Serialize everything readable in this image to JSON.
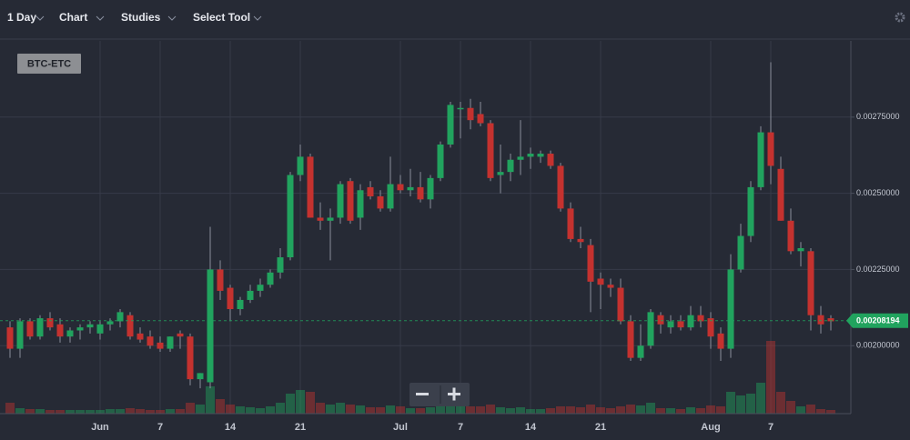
{
  "toolbar": {
    "items": [
      "1 Day",
      "Chart",
      "Studies",
      "Select Tool"
    ]
  },
  "chart_data": {
    "type": "candlestick",
    "symbol": "BTC-ETC",
    "categories": [
      null,
      null,
      null,
      null,
      null,
      null,
      null,
      null,
      null,
      "Jun",
      null,
      null,
      null,
      null,
      null,
      "7",
      null,
      null,
      null,
      null,
      null,
      null,
      "14",
      null,
      null,
      null,
      null,
      null,
      null,
      "21",
      null,
      null,
      null,
      null,
      null,
      null,
      null,
      null,
      null,
      "Jul",
      null,
      null,
      null,
      null,
      null,
      "7",
      null,
      null,
      null,
      null,
      null,
      null,
      "14",
      null,
      null,
      null,
      null,
      null,
      null,
      "21",
      null,
      null,
      null,
      null,
      null,
      null,
      null,
      null,
      null,
      null,
      "Aug",
      null,
      null,
      null,
      null,
      null,
      "7",
      null,
      null,
      null,
      null,
      null,
      null
    ],
    "open": [
      0.00206,
      0.00199,
      0.00208,
      0.00203,
      0.00209,
      0.00207,
      0.00203,
      0.00205,
      0.00206,
      0.00204,
      0.00207,
      0.00208,
      0.0021,
      0.00204,
      0.00203,
      0.00201,
      0.00199,
      0.00204,
      0.00203,
      0.00189,
      0.00188,
      0.00225,
      0.00219,
      0.00212,
      0.00215,
      0.00218,
      0.0022,
      0.00224,
      0.00229,
      0.00256,
      0.00262,
      0.00242,
      0.00241,
      0.00242,
      0.00254,
      0.00242,
      0.00252,
      0.00249,
      0.00245,
      0.00253,
      0.00251,
      0.00252,
      0.00248,
      0.00255,
      0.00266,
      0.00278,
      0.00278,
      0.00276,
      0.00273,
      0.00256,
      0.00257,
      0.00261,
      0.00262,
      0.00262,
      0.00263,
      0.00259,
      0.00245,
      0.00235,
      0.00233,
      0.00222,
      0.0022,
      0.00219,
      0.00208,
      0.00196,
      0.002,
      0.0021,
      0.00206,
      0.00208,
      0.00206,
      0.0021,
      0.00209,
      0.00204,
      0.00199,
      0.00225,
      0.00236,
      0.00252,
      0.0027,
      0.00258,
      0.00241,
      0.00231,
      0.00231,
      0.0021,
      0.00209
    ],
    "high": [
      0.00208,
      0.00209,
      0.00209,
      0.0021,
      0.00211,
      0.00209,
      0.00206,
      0.00207,
      0.00208,
      0.00208,
      0.00209,
      0.00212,
      0.00211,
      0.00206,
      0.00205,
      0.00203,
      0.00203,
      0.00205,
      0.00204,
      0.00191,
      0.00239,
      0.00228,
      0.0022,
      0.00216,
      0.0022,
      0.00222,
      0.00225,
      0.00232,
      0.00257,
      0.00266,
      0.00263,
      0.00247,
      0.00245,
      0.00254,
      0.00255,
      0.00253,
      0.00254,
      0.00251,
      0.00262,
      0.00256,
      0.00258,
      0.00257,
      0.00256,
      0.00267,
      0.0028,
      0.0028,
      0.00281,
      0.0028,
      0.00274,
      0.00266,
      0.00263,
      0.00274,
      0.00265,
      0.00264,
      0.00264,
      0.0026,
      0.00247,
      0.00239,
      0.00235,
      0.00224,
      0.00222,
      0.00222,
      0.0021,
      0.00207,
      0.00212,
      0.00211,
      0.0021,
      0.0021,
      0.00213,
      0.00213,
      0.00211,
      0.00206,
      0.0023,
      0.0024,
      0.00254,
      0.00272,
      0.00293,
      0.00262,
      0.00245,
      0.00234,
      0.00232,
      0.00213,
      0.0021
    ],
    "low": [
      0.00196,
      0.00196,
      0.00202,
      0.00202,
      0.00205,
      0.00201,
      0.00201,
      0.00202,
      0.00204,
      0.00202,
      0.00205,
      0.00206,
      0.00202,
      0.00201,
      0.00199,
      0.00198,
      0.00198,
      0.00199,
      0.00187,
      0.00186,
      0.00186,
      0.00215,
      0.00208,
      0.0021,
      0.00214,
      0.00216,
      0.00219,
      0.00222,
      0.00228,
      0.00254,
      0.00242,
      0.00238,
      0.00228,
      0.0024,
      0.0024,
      0.00238,
      0.00248,
      0.00244,
      0.00244,
      0.0025,
      0.00249,
      0.00247,
      0.00245,
      0.00254,
      0.00265,
      0.00268,
      0.00271,
      0.00272,
      0.00254,
      0.0025,
      0.00254,
      0.00256,
      0.00258,
      0.0026,
      0.00258,
      0.00244,
      0.00234,
      0.00232,
      0.00211,
      0.00212,
      0.00216,
      0.00207,
      0.00195,
      0.00195,
      0.00199,
      0.00204,
      0.00204,
      0.00205,
      0.00205,
      0.00206,
      0.00199,
      0.00195,
      0.00196,
      0.00224,
      0.00234,
      0.00251,
      0.00253,
      0.00241,
      0.0023,
      0.00226,
      0.00205,
      0.00204,
      0.00205
    ],
    "close": [
      0.00199,
      0.00208,
      0.00203,
      0.00209,
      0.00206,
      0.00203,
      0.00205,
      0.00206,
      0.00207,
      0.00207,
      0.00208,
      0.00211,
      0.00203,
      0.00202,
      0.002,
      0.00199,
      0.00203,
      0.00203,
      0.00189,
      0.00191,
      0.00225,
      0.00218,
      0.00212,
      0.00215,
      0.00218,
      0.0022,
      0.00224,
      0.00229,
      0.00256,
      0.00262,
      0.00242,
      0.00241,
      0.00242,
      0.00253,
      0.00241,
      0.00251,
      0.00249,
      0.00245,
      0.00253,
      0.00251,
      0.00252,
      0.00248,
      0.00255,
      0.00266,
      0.00279,
      0.00278,
      0.00274,
      0.00273,
      0.00255,
      0.00257,
      0.00261,
      0.00262,
      0.00263,
      0.00263,
      0.00259,
      0.00245,
      0.00235,
      0.00234,
      0.00221,
      0.0022,
      0.00219,
      0.00208,
      0.00196,
      0.002,
      0.00211,
      0.00207,
      0.00208,
      0.00206,
      0.0021,
      0.00208,
      0.00203,
      0.00199,
      0.00225,
      0.00236,
      0.00252,
      0.0027,
      0.00259,
      0.00241,
      0.00231,
      0.00232,
      0.0021,
      0.00207,
      0.00208
    ],
    "volume": [
      12,
      6,
      5,
      5,
      4,
      4,
      4,
      4,
      4,
      4,
      5,
      5,
      6,
      5,
      4,
      4,
      5,
      5,
      12,
      10,
      30,
      16,
      10,
      8,
      7,
      6,
      8,
      12,
      22,
      26,
      24,
      12,
      10,
      12,
      10,
      9,
      7,
      7,
      9,
      8,
      6,
      6,
      7,
      10,
      12,
      9,
      8,
      8,
      10,
      7,
      6,
      7,
      5,
      5,
      6,
      8,
      8,
      7,
      10,
      7,
      6,
      8,
      10,
      9,
      12,
      6,
      6,
      5,
      7,
      6,
      9,
      8,
      24,
      20,
      22,
      34,
      80,
      24,
      14,
      8,
      10,
      5,
      4
    ],
    "volume_ylim": [
      0,
      100
    ],
    "up_color": "#21a35e",
    "down_color": "#c4322f",
    "last_price": 0.00208194,
    "ylim": [
      0.001777,
      0.003
    ],
    "yticks": [
      {
        "value": 0.002,
        "label": "0.00200000"
      },
      {
        "value": 0.00225,
        "label": "0.00225000"
      },
      {
        "value": 0.0025,
        "label": "0.00250000"
      },
      {
        "value": 0.00275,
        "label": "0.00275000"
      }
    ],
    "grid": true
  }
}
